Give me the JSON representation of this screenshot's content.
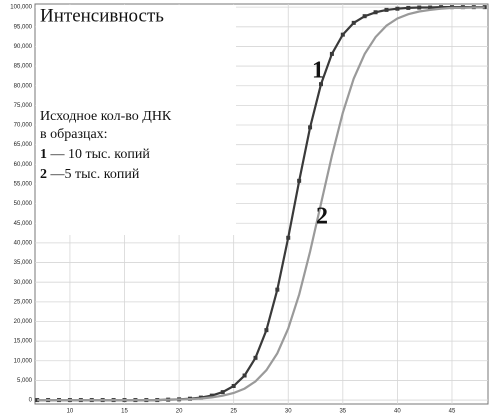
{
  "chart_data": {
    "type": "line",
    "title": "Интенсивность",
    "legend": {
      "heading": "Исходное кол-во ДНК",
      "subheading": "в образцах:",
      "entries": [
        "— 10 тыс. копий",
        "—5 тыс. копий"
      ]
    },
    "x": [
      7,
      8,
      9,
      10,
      11,
      12,
      13,
      14,
      15,
      16,
      17,
      18,
      19,
      20,
      21,
      22,
      23,
      24,
      25,
      26,
      27,
      28,
      29,
      30,
      31,
      32,
      33,
      34,
      35,
      36,
      37,
      38,
      39,
      40,
      41,
      42,
      43,
      44,
      45,
      46,
      47,
      48
    ],
    "series": [
      {
        "name": "1",
        "color": "#3a3a3a",
        "markers": true,
        "values": [
          0,
          0,
          0,
          0,
          0,
          0,
          0,
          0,
          0,
          0,
          0,
          0,
          110,
          190,
          350,
          630,
          1130,
          2020,
          3580,
          6250,
          10750,
          17800,
          28100,
          41300,
          55800,
          69400,
          80400,
          88100,
          93000,
          96000,
          97700,
          98700,
          99300,
          99600,
          99800,
          99900,
          99900,
          100000,
          100000,
          100000,
          100000,
          100000
        ]
      },
      {
        "name": "2",
        "color": "#9a9a9a",
        "markers": false,
        "values": [
          0,
          0,
          0,
          0,
          0,
          0,
          0,
          0,
          0,
          0,
          0,
          0,
          90,
          150,
          250,
          410,
          670,
          1100,
          1800,
          2930,
          4740,
          7590,
          11900,
          18200,
          26900,
          37800,
          50000,
          62200,
          73100,
          81800,
          88100,
          92400,
          95300,
          97100,
          98200,
          98900,
          99300,
          99600,
          99800,
          99800,
          99900,
          99900
        ]
      }
    ],
    "xlim": [
      6.8,
      48.3
    ],
    "xticks": [
      10,
      15,
      20,
      25,
      30,
      35,
      40,
      45
    ],
    "ylim": [
      -1000,
      100800
    ],
    "yticks": [
      0,
      {
        "value": 5000,
        "label": "5,000"
      },
      {
        "value": 10000,
        "label": "10,000"
      },
      {
        "value": 15000,
        "label": "15,000"
      },
      {
        "value": 20000,
        "label": "20,000"
      },
      {
        "value": 25000,
        "label": "25,000"
      },
      {
        "value": 30000,
        "label": "30,000"
      },
      {
        "value": 35000,
        "label": "35,000"
      },
      {
        "value": 40000,
        "label": "40,000"
      },
      {
        "value": 45000,
        "label": "45,000"
      },
      {
        "value": 50000,
        "label": "50,000"
      },
      {
        "value": 55000,
        "label": "55,000"
      },
      {
        "value": 60000,
        "label": "60,000"
      },
      {
        "value": 65000,
        "label": "65,000"
      },
      {
        "value": 70000,
        "label": "70,000"
      },
      {
        "value": 75000,
        "label": "75,000"
      },
      {
        "value": 80000,
        "label": "80,000"
      },
      {
        "value": 85000,
        "label": "85,000"
      },
      {
        "value": 90000,
        "label": "90,000"
      },
      {
        "value": 95000,
        "label": "95,000"
      },
      {
        "value": 100000,
        "label": "100,000"
      }
    ],
    "grid": true
  }
}
